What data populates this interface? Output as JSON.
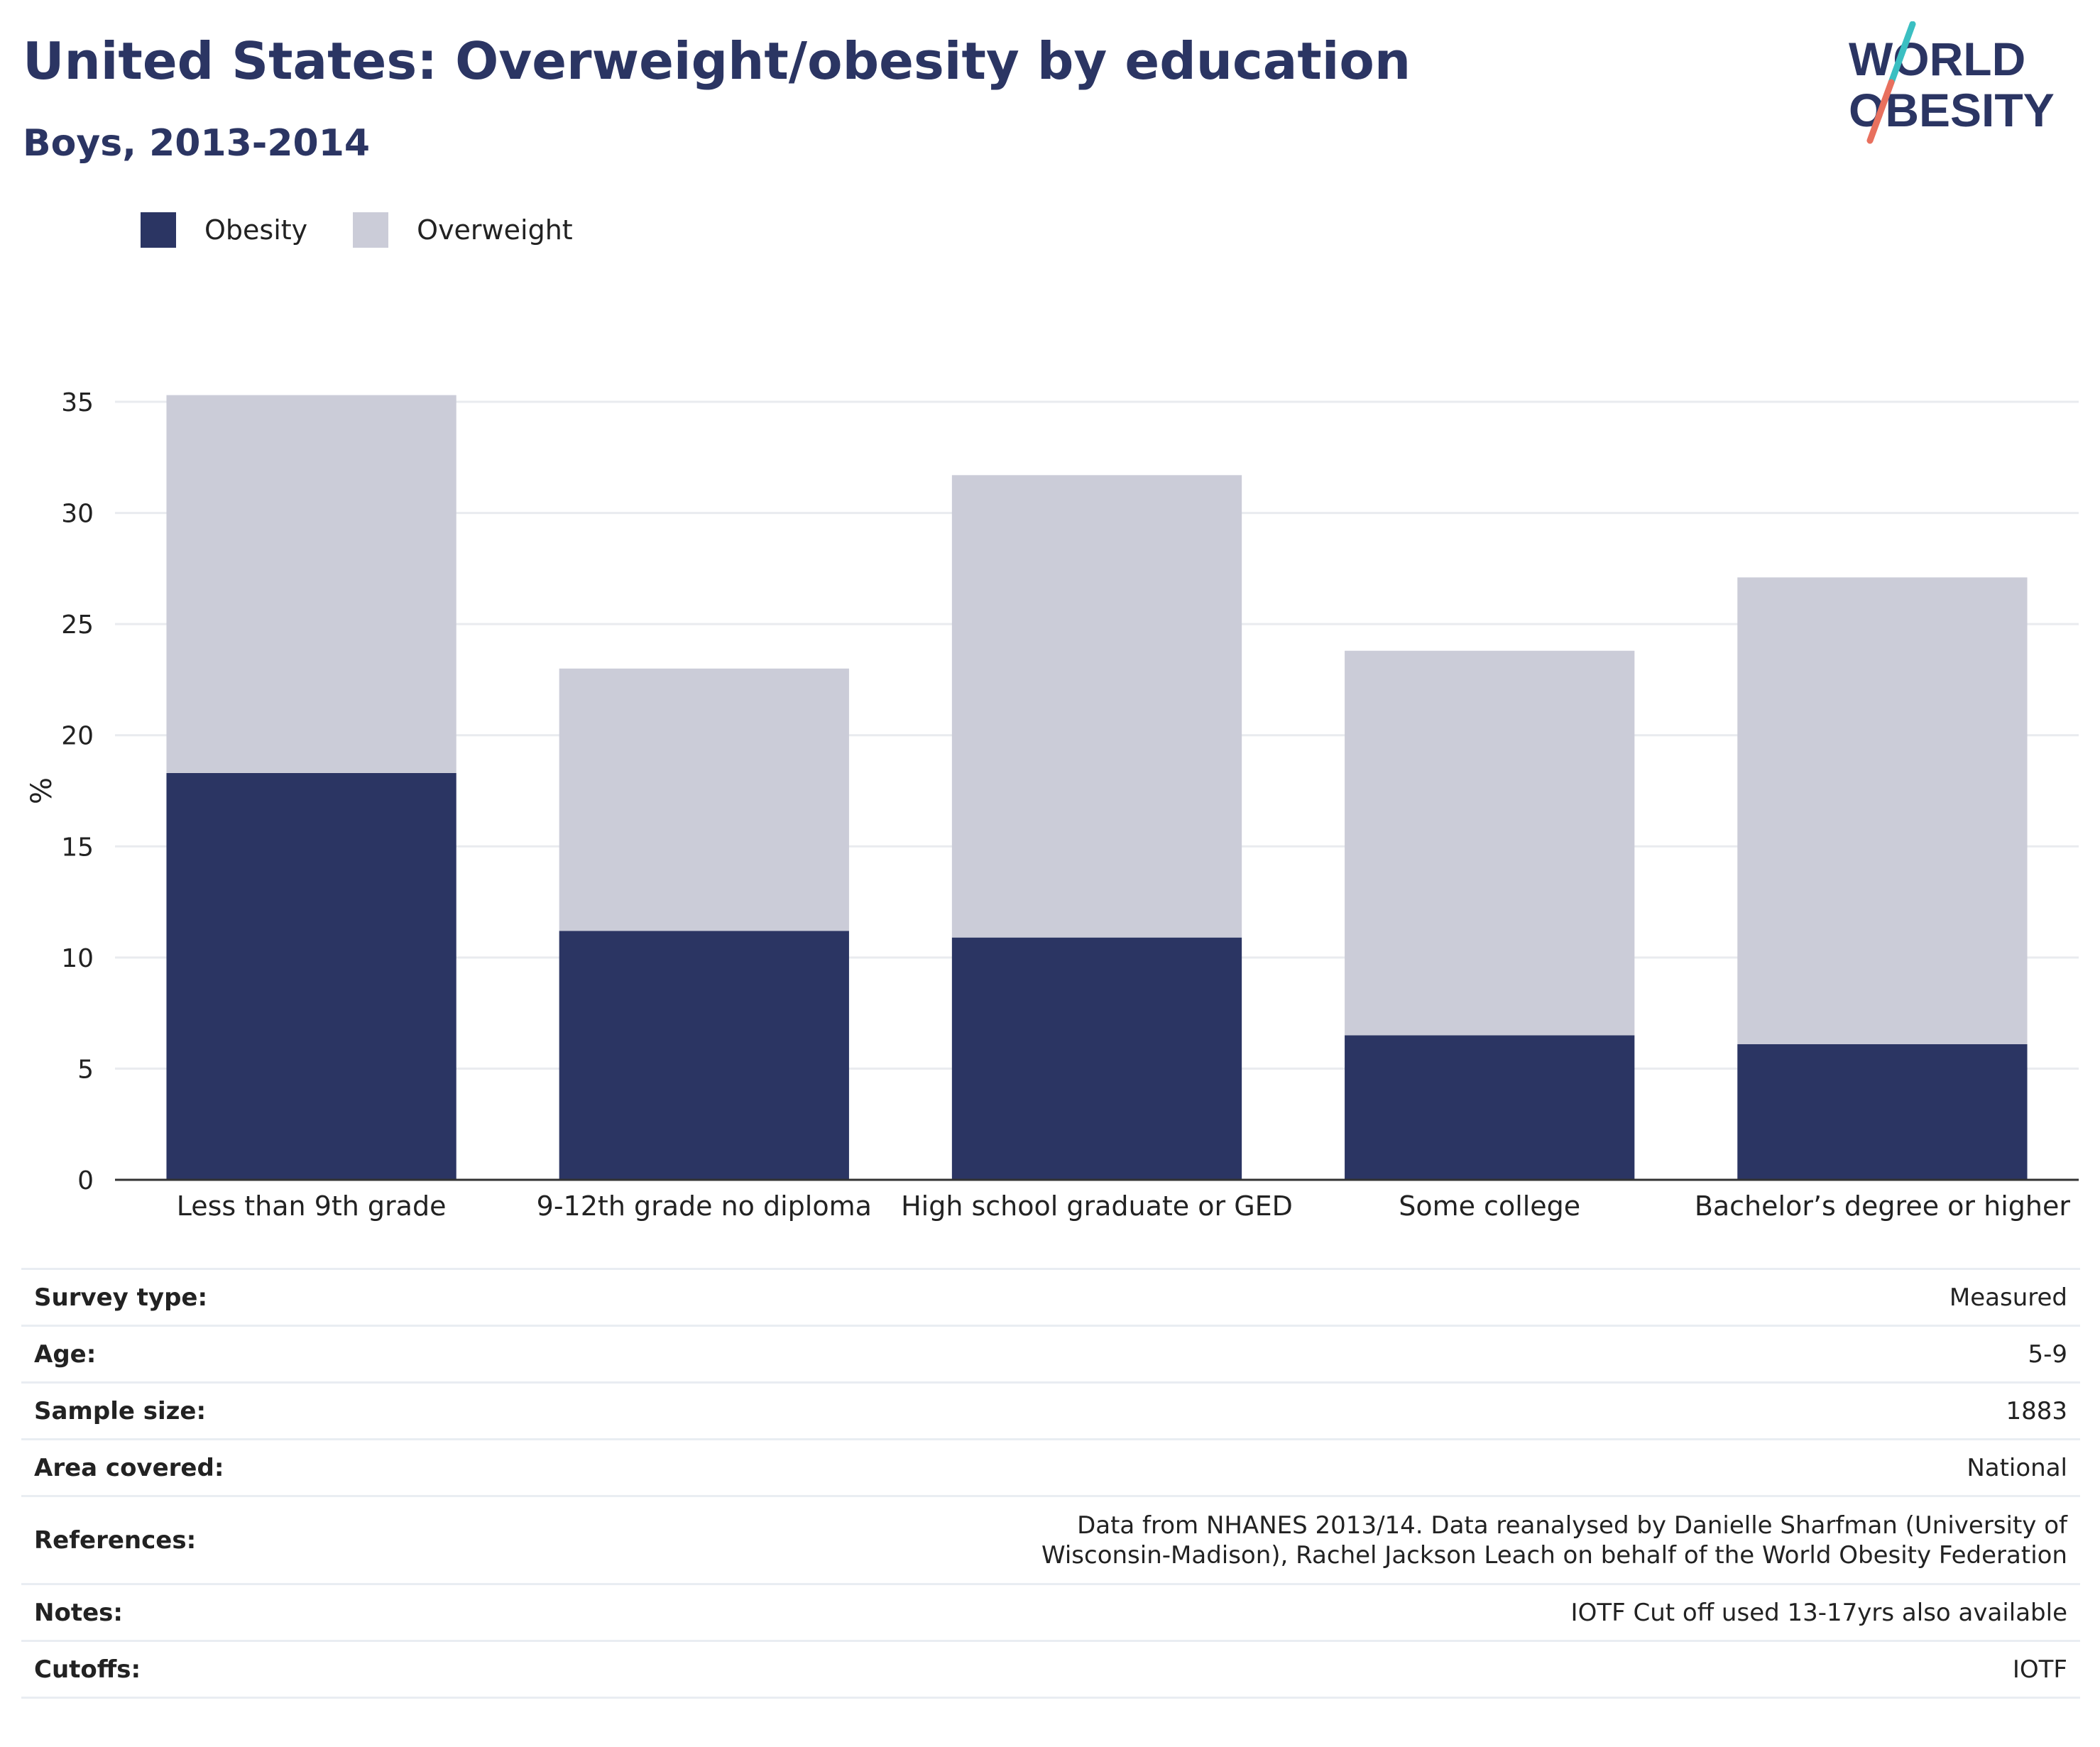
{
  "header": {
    "title": "United States: Overweight/obesity by education",
    "subtitle": "Boys, 2013-2014"
  },
  "logo": {
    "line1": "WORLD",
    "line2": "OBESITY",
    "colors": {
      "text": "#2b3563",
      "slash_top": "#3bbfc2",
      "slash_bottom": "#e8705e"
    }
  },
  "colors": {
    "obesity": "#2b3563",
    "overweight": "#cbccd8",
    "grid": "#e9ebef",
    "axis": "#333333"
  },
  "chart_data": {
    "type": "bar",
    "stacked": true,
    "categories": [
      "Less than 9th grade",
      "9-12th grade no diploma",
      "High school graduate or GED",
      "Some college",
      "Bachelor’s degree or higher"
    ],
    "series": [
      {
        "name": "Obesity",
        "values": [
          18.3,
          11.2,
          10.9,
          6.5,
          6.1
        ]
      },
      {
        "name": "Overweight",
        "values": [
          17.0,
          11.8,
          20.8,
          17.3,
          21.0
        ]
      }
    ],
    "totals": [
      35.3,
      23.0,
      31.7,
      23.8,
      27.1
    ],
    "ylabel": "%",
    "xlabel": "",
    "ylim": [
      0,
      35
    ],
    "yticks": [
      0,
      5,
      10,
      15,
      20,
      25,
      30,
      35
    ],
    "grid": true,
    "legend_position": "top-left"
  },
  "meta": [
    {
      "label": "Survey type:",
      "value": "Measured"
    },
    {
      "label": "Age:",
      "value": "5-9"
    },
    {
      "label": "Sample size:",
      "value": "1883"
    },
    {
      "label": "Area covered:",
      "value": "National"
    },
    {
      "label": "References:",
      "value": "Data from NHANES 2013/14. Data reanalysed by Danielle Sharfman (University of Wisconsin-Madison), Rachel Jackson Leach on behalf of the World Obesity Federation"
    },
    {
      "label": "Notes:",
      "value": "IOTF Cut off used 13-17yrs also available"
    },
    {
      "label": "Cutoffs:",
      "value": "IOTF"
    }
  ]
}
